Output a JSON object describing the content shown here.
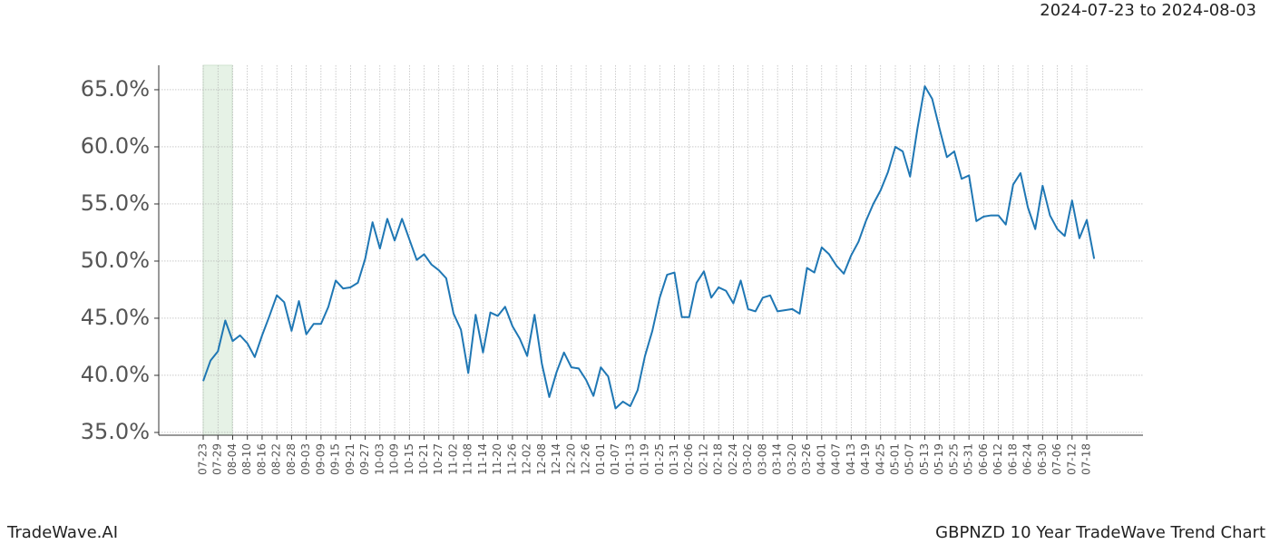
{
  "chart_data": {
    "type": "line",
    "title": "2024-07-23 to 2024-08-03",
    "footer_left": "TradeWave.AI",
    "footer_right": "GBPNZD 10 Year TradeWave Trend Chart",
    "categories": [
      "07-23",
      null,
      "07-29",
      null,
      "08-04",
      null,
      "08-10",
      null,
      "08-16",
      null,
      "08-22",
      null,
      "08-28",
      null,
      "09-03",
      null,
      "09-09",
      null,
      "09-15",
      null,
      "09-21",
      null,
      "09-27",
      null,
      "10-03",
      null,
      "10-09",
      null,
      "10-15",
      null,
      "10-21",
      null,
      "10-27",
      null,
      "11-02",
      null,
      "11-08",
      null,
      "11-14",
      null,
      "11-20",
      null,
      "11-26",
      null,
      "12-02",
      null,
      "12-08",
      null,
      "12-14",
      null,
      "12-20",
      null,
      "12-26",
      null,
      "01-01",
      null,
      "01-07",
      null,
      "01-13",
      null,
      "01-19",
      null,
      "01-25",
      null,
      "01-31",
      null,
      "02-06",
      null,
      "02-12",
      null,
      "02-18",
      null,
      "02-24",
      null,
      "03-02",
      null,
      "03-08",
      null,
      "03-14",
      null,
      "03-20",
      null,
      "03-26",
      null,
      "04-01",
      null,
      "04-07",
      null,
      "04-13",
      null,
      "04-19",
      null,
      "04-25",
      null,
      "05-01",
      null,
      "05-07",
      null,
      "05-13",
      null,
      "05-19",
      null,
      "05-25",
      null,
      "05-31",
      null,
      "06-06",
      null,
      "06-12",
      null,
      "06-18",
      null,
      "06-24",
      null,
      "06-30",
      null,
      "07-06",
      null,
      "07-12",
      null,
      "07-18",
      null
    ],
    "values": [
      39.5,
      41.3,
      42.1,
      44.8,
      43.0,
      43.5,
      42.8,
      41.6,
      43.5,
      45.2,
      47.0,
      46.4,
      43.9,
      46.5,
      43.6,
      44.5,
      44.5,
      46.0,
      48.3,
      47.6,
      47.7,
      48.1,
      50.2,
      53.4,
      51.1,
      53.7,
      51.8,
      53.7,
      51.9,
      50.1,
      50.6,
      49.7,
      49.2,
      48.5,
      45.4,
      44.0,
      40.2,
      45.3,
      42.0,
      45.5,
      45.2,
      46.0,
      44.3,
      43.2,
      41.7,
      45.3,
      41.0,
      38.1,
      40.3,
      42.0,
      40.7,
      40.6,
      39.6,
      38.2,
      40.7,
      39.9,
      37.1,
      37.7,
      37.3,
      38.7,
      41.7,
      43.9,
      46.8,
      48.8,
      49.0,
      45.1,
      45.1,
      48.1,
      49.1,
      46.8,
      47.7,
      47.4,
      46.3,
      48.3,
      45.8,
      45.6,
      46.8,
      47.0,
      45.6,
      45.7,
      45.8,
      45.4,
      49.4,
      49.0,
      51.2,
      50.6,
      49.6,
      48.9,
      50.5,
      51.7,
      53.5,
      55.0,
      56.2,
      57.8,
      60.0,
      59.6,
      57.4,
      61.6,
      65.3,
      64.2,
      61.6,
      59.1,
      59.6,
      57.2,
      57.5,
      53.5,
      53.9,
      54.0,
      54.0,
      53.2,
      56.7,
      57.7,
      54.7,
      52.8,
      56.6,
      54.0,
      52.8,
      52.2,
      55.3,
      52.0,
      53.6,
      50.2
    ],
    "color": "#1f77b4",
    "ylim": [
      34.76,
      67.14
    ],
    "yticks": [
      {
        "value": 35,
        "label": "35.0%"
      },
      {
        "value": 40,
        "label": "40.0%"
      },
      {
        "value": 45,
        "label": "45.0%"
      },
      {
        "value": 50,
        "label": "50.0%"
      },
      {
        "value": 55,
        "label": "55.0%"
      },
      {
        "value": 60,
        "label": "60.0%"
      },
      {
        "value": 65,
        "label": "65.0%"
      }
    ],
    "grid": true
  }
}
